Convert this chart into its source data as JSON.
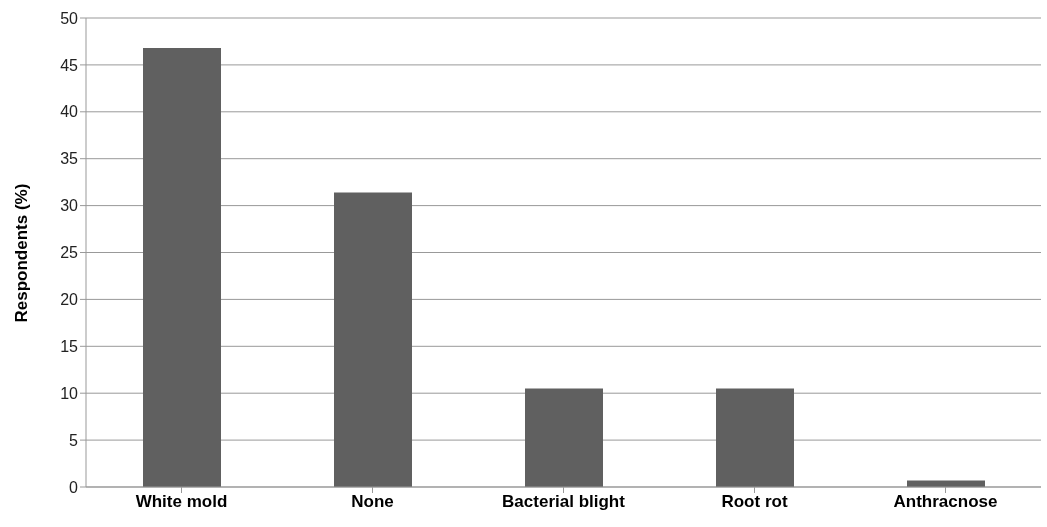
{
  "chart_data": {
    "type": "bar",
    "ylabel": "Respondents (%)",
    "categories": [
      "White mold",
      "None",
      "Bacterial blight",
      "Root rot",
      "Anthracnose"
    ],
    "values": [
      46.8,
      31.4,
      10.5,
      10.5,
      0.7
    ],
    "color": "#606060",
    "ylim": [
      0,
      50
    ],
    "yticks": [
      0,
      5,
      10,
      15,
      20,
      25,
      30,
      35,
      40,
      45,
      50
    ],
    "grid": "y"
  }
}
